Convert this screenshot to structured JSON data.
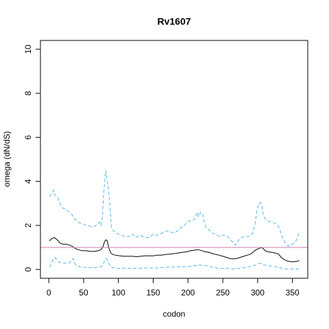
{
  "chart_data": {
    "type": "line",
    "title": "Rv1607",
    "xlabel": "codon",
    "ylabel": "omega (dN/dS)",
    "xlim": [
      -12,
      372
    ],
    "ylim": [
      -0.4,
      10.4
    ],
    "xticks": [
      0,
      50,
      100,
      150,
      200,
      250,
      300,
      350
    ],
    "yticks": [
      0,
      2,
      4,
      6,
      8,
      10
    ],
    "grid": false,
    "reference_line": {
      "y": 1,
      "color": "#cc79a7"
    },
    "series": [
      {
        "role": "upper-bound",
        "style": "dashed",
        "color": "#56b4e9",
        "points": [
          [
            1,
            3.3
          ],
          [
            3,
            3.4
          ],
          [
            5,
            3.5
          ],
          [
            7,
            3.6
          ],
          [
            9,
            3.35
          ],
          [
            11,
            3.3
          ],
          [
            13,
            3.25
          ],
          [
            16,
            3.0
          ],
          [
            20,
            2.8
          ],
          [
            25,
            2.7
          ],
          [
            30,
            2.6
          ],
          [
            33,
            2.5
          ],
          [
            36,
            2.35
          ],
          [
            40,
            2.2
          ],
          [
            45,
            2.1
          ],
          [
            50,
            2.05
          ],
          [
            55,
            2.0
          ],
          [
            60,
            1.95
          ],
          [
            65,
            1.95
          ],
          [
            70,
            2.05
          ],
          [
            73,
            2.15
          ],
          [
            75,
            2.0
          ],
          [
            77,
            2.4
          ],
          [
            79,
            3.5
          ],
          [
            81,
            4.3
          ],
          [
            82,
            4.5
          ],
          [
            84,
            4.0
          ],
          [
            86,
            3.6
          ],
          [
            88,
            2.8
          ],
          [
            90,
            1.9
          ],
          [
            93,
            1.75
          ],
          [
            96,
            1.7
          ],
          [
            100,
            1.6
          ],
          [
            105,
            1.55
          ],
          [
            110,
            1.5
          ],
          [
            115,
            1.5
          ],
          [
            120,
            1.6
          ],
          [
            125,
            1.45
          ],
          [
            130,
            1.55
          ],
          [
            135,
            1.5
          ],
          [
            140,
            1.45
          ],
          [
            145,
            1.45
          ],
          [
            150,
            1.6
          ],
          [
            155,
            1.55
          ],
          [
            160,
            1.6
          ],
          [
            165,
            1.7
          ],
          [
            170,
            1.75
          ],
          [
            175,
            1.7
          ],
          [
            180,
            1.65
          ],
          [
            185,
            1.75
          ],
          [
            190,
            1.9
          ],
          [
            195,
            2.0
          ],
          [
            200,
            2.2
          ],
          [
            205,
            2.2
          ],
          [
            210,
            2.3
          ],
          [
            213,
            2.6
          ],
          [
            215,
            2.4
          ],
          [
            218,
            2.6
          ],
          [
            221,
            2.55
          ],
          [
            223,
            2.2
          ],
          [
            226,
            1.9
          ],
          [
            230,
            1.8
          ],
          [
            235,
            1.65
          ],
          [
            240,
            1.6
          ],
          [
            245,
            1.5
          ],
          [
            250,
            1.55
          ],
          [
            255,
            1.55
          ],
          [
            260,
            1.4
          ],
          [
            265,
            1.2
          ],
          [
            268,
            1.1
          ],
          [
            272,
            1.3
          ],
          [
            277,
            1.45
          ],
          [
            282,
            1.5
          ],
          [
            287,
            1.5
          ],
          [
            292,
            1.6
          ],
          [
            296,
            2.0
          ],
          [
            299,
            2.7
          ],
          [
            302,
            3.0
          ],
          [
            304,
            3.05
          ],
          [
            306,
            2.9
          ],
          [
            308,
            2.5
          ],
          [
            311,
            2.3
          ],
          [
            315,
            2.2
          ],
          [
            320,
            2.15
          ],
          [
            325,
            2.1
          ],
          [
            329,
            2.0
          ],
          [
            332,
            1.8
          ],
          [
            335,
            1.5
          ],
          [
            338,
            1.3
          ],
          [
            342,
            1.1
          ],
          [
            346,
            1.05
          ],
          [
            350,
            1.15
          ],
          [
            353,
            1.2
          ],
          [
            356,
            1.35
          ],
          [
            359,
            1.65
          ],
          [
            360,
            1.7
          ]
        ]
      },
      {
        "role": "estimate",
        "style": "solid",
        "color": "#000000",
        "points": [
          [
            1,
            1.3
          ],
          [
            4,
            1.4
          ],
          [
            8,
            1.45
          ],
          [
            12,
            1.35
          ],
          [
            16,
            1.2
          ],
          [
            20,
            1.15
          ],
          [
            25,
            1.15
          ],
          [
            30,
            1.1
          ],
          [
            34,
            1.05
          ],
          [
            38,
            0.95
          ],
          [
            42,
            0.9
          ],
          [
            48,
            0.85
          ],
          [
            54,
            0.85
          ],
          [
            60,
            0.82
          ],
          [
            66,
            0.82
          ],
          [
            71,
            0.85
          ],
          [
            75,
            0.9
          ],
          [
            78,
            1.05
          ],
          [
            80,
            1.25
          ],
          [
            82,
            1.35
          ],
          [
            84,
            1.3
          ],
          [
            86,
            1.0
          ],
          [
            89,
            0.75
          ],
          [
            92,
            0.68
          ],
          [
            96,
            0.65
          ],
          [
            102,
            0.62
          ],
          [
            108,
            0.6
          ],
          [
            114,
            0.6
          ],
          [
            120,
            0.6
          ],
          [
            126,
            0.58
          ],
          [
            132,
            0.6
          ],
          [
            138,
            0.62
          ],
          [
            144,
            0.62
          ],
          [
            150,
            0.62
          ],
          [
            156,
            0.65
          ],
          [
            162,
            0.65
          ],
          [
            168,
            0.68
          ],
          [
            174,
            0.7
          ],
          [
            180,
            0.72
          ],
          [
            186,
            0.75
          ],
          [
            192,
            0.78
          ],
          [
            198,
            0.8
          ],
          [
            204,
            0.85
          ],
          [
            210,
            0.88
          ],
          [
            215,
            0.9
          ],
          [
            220,
            0.85
          ],
          [
            225,
            0.8
          ],
          [
            230,
            0.78
          ],
          [
            235,
            0.72
          ],
          [
            240,
            0.68
          ],
          [
            245,
            0.65
          ],
          [
            250,
            0.6
          ],
          [
            255,
            0.55
          ],
          [
            260,
            0.5
          ],
          [
            265,
            0.48
          ],
          [
            270,
            0.5
          ],
          [
            275,
            0.55
          ],
          [
            280,
            0.6
          ],
          [
            285,
            0.65
          ],
          [
            290,
            0.7
          ],
          [
            294,
            0.8
          ],
          [
            298,
            0.9
          ],
          [
            302,
            0.95
          ],
          [
            305,
            1.0
          ],
          [
            308,
            0.95
          ],
          [
            311,
            0.85
          ],
          [
            315,
            0.8
          ],
          [
            320,
            0.78
          ],
          [
            325,
            0.75
          ],
          [
            330,
            0.7
          ],
          [
            334,
            0.55
          ],
          [
            338,
            0.45
          ],
          [
            343,
            0.38
          ],
          [
            348,
            0.35
          ],
          [
            352,
            0.35
          ],
          [
            356,
            0.37
          ],
          [
            360,
            0.4
          ]
        ]
      },
      {
        "role": "lower-bound",
        "style": "dashed",
        "color": "#56b4e9",
        "points": [
          [
            1,
            0.1
          ],
          [
            3,
            0.2
          ],
          [
            5,
            0.4
          ],
          [
            7,
            0.5
          ],
          [
            9,
            0.55
          ],
          [
            11,
            0.45
          ],
          [
            14,
            0.35
          ],
          [
            18,
            0.3
          ],
          [
            22,
            0.28
          ],
          [
            26,
            0.3
          ],
          [
            30,
            0.3
          ],
          [
            33,
            0.45
          ],
          [
            35,
            0.5
          ],
          [
            37,
            0.3
          ],
          [
            40,
            0.15
          ],
          [
            45,
            0.12
          ],
          [
            50,
            0.1
          ],
          [
            55,
            0.08
          ],
          [
            60,
            0.08
          ],
          [
            65,
            0.08
          ],
          [
            70,
            0.1
          ],
          [
            75,
            0.12
          ],
          [
            78,
            0.2
          ],
          [
            80,
            0.4
          ],
          [
            82,
            0.5
          ],
          [
            84,
            0.45
          ],
          [
            86,
            0.3
          ],
          [
            88,
            0.15
          ],
          [
            92,
            0.08
          ],
          [
            96,
            0.06
          ],
          [
            100,
            0.05
          ],
          [
            108,
            0.06
          ],
          [
            115,
            0.05
          ],
          [
            122,
            0.06
          ],
          [
            130,
            0.05
          ],
          [
            138,
            0.06
          ],
          [
            145,
            0.07
          ],
          [
            152,
            0.06
          ],
          [
            160,
            0.08
          ],
          [
            168,
            0.1
          ],
          [
            175,
            0.1
          ],
          [
            182,
            0.12
          ],
          [
            190,
            0.12
          ],
          [
            198,
            0.13
          ],
          [
            205,
            0.15
          ],
          [
            212,
            0.18
          ],
          [
            218,
            0.2
          ],
          [
            223,
            0.18
          ],
          [
            228,
            0.15
          ],
          [
            233,
            0.12
          ],
          [
            238,
            0.1
          ],
          [
            243,
            0.05
          ],
          [
            248,
            0.05
          ],
          [
            255,
            0.05
          ],
          [
            262,
            0.03
          ],
          [
            268,
            0.03
          ],
          [
            274,
            0.05
          ],
          [
            280,
            0.08
          ],
          [
            286,
            0.12
          ],
          [
            292,
            0.15
          ],
          [
            297,
            0.2
          ],
          [
            300,
            0.25
          ],
          [
            303,
            0.28
          ],
          [
            306,
            0.25
          ],
          [
            310,
            0.2
          ],
          [
            315,
            0.18
          ],
          [
            320,
            0.15
          ],
          [
            325,
            0.13
          ],
          [
            330,
            0.1
          ],
          [
            335,
            0.05
          ],
          [
            340,
            0.03
          ],
          [
            348,
            0.02
          ],
          [
            355,
            0.02
          ],
          [
            360,
            0.02
          ]
        ]
      }
    ]
  }
}
